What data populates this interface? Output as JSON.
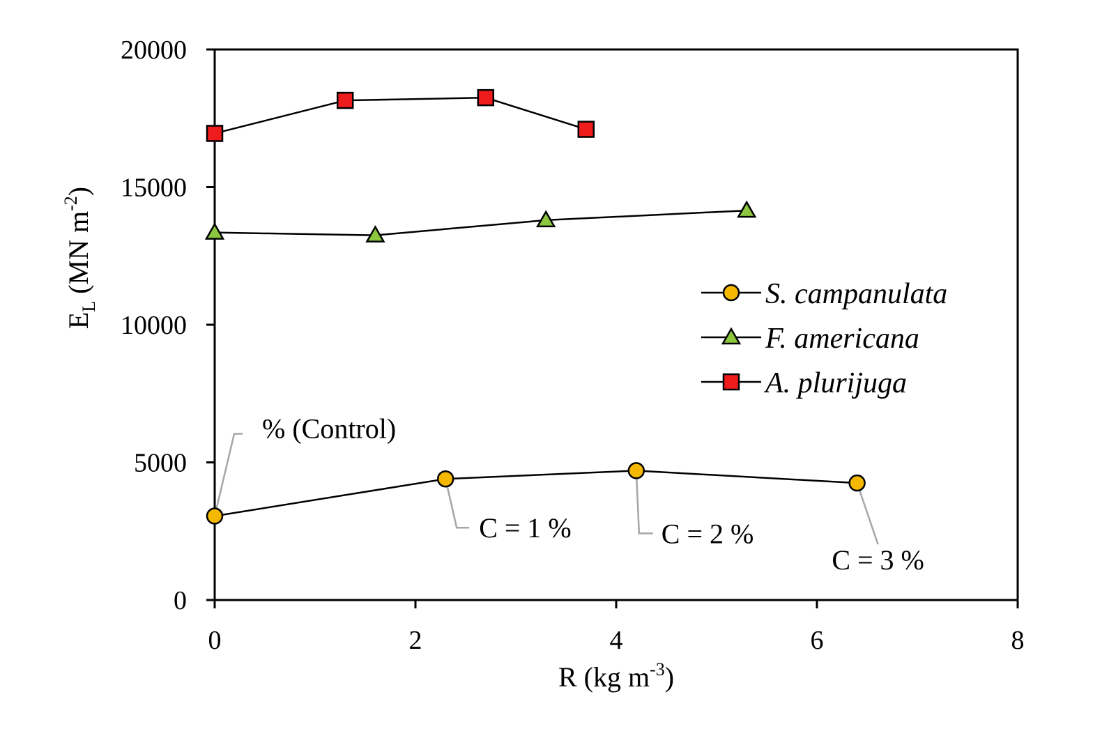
{
  "chart_data": {
    "type": "line",
    "title": "",
    "xlabel_main": "R  (kg m",
    "xlabel_sup": "-3",
    "xlabel_end": ")",
    "ylabel_main": "E",
    "ylabel_sub": "L",
    "ylabel_rest": "  (MN m",
    "ylabel_sup": "-2",
    "ylabel_end": ")",
    "xlim": [
      0,
      8
    ],
    "ylim": [
      0,
      20000
    ],
    "xticks": [
      0,
      2,
      4,
      6,
      8
    ],
    "yticks": [
      0,
      5000,
      10000,
      15000,
      20000
    ],
    "legend_position": "right-middle",
    "series": [
      {
        "name": "S. campanulata",
        "marker": "circle",
        "color": "#f5b800",
        "x": [
          0,
          2.3,
          4.2,
          6.4
        ],
        "y": [
          3050,
          4400,
          4700,
          4250
        ]
      },
      {
        "name": "F. americana",
        "marker": "triangle",
        "color": "#8dc63f",
        "x": [
          0,
          1.6,
          3.3,
          5.3
        ],
        "y": [
          13350,
          13250,
          13800,
          14150
        ]
      },
      {
        "name": "A. plurijuga",
        "marker": "square",
        "color": "#ee1c1c",
        "x": [
          0,
          1.3,
          2.7,
          3.7
        ],
        "y": [
          16950,
          18150,
          18250,
          17100
        ]
      }
    ],
    "annotations": [
      {
        "text": "% (Control)",
        "point_x": 0,
        "point_y": 3050
      },
      {
        "text": "C = 1 %",
        "point_x": 2.3,
        "point_y": 4400
      },
      {
        "text": "C = 2 %",
        "point_x": 4.2,
        "point_y": 4700
      },
      {
        "text": "C = 3 %",
        "point_x": 6.4,
        "point_y": 4250
      }
    ]
  }
}
